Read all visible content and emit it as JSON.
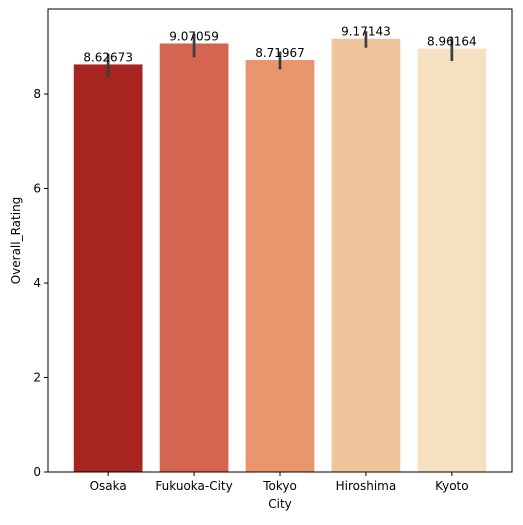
{
  "chart_data": {
    "type": "bar",
    "title": "",
    "xlabel": "City",
    "ylabel": "Overall_Rating",
    "categories": [
      "Osaka",
      "Fukuoka-City",
      "Tokyo",
      "Hiroshima",
      "Kyoto"
    ],
    "values": [
      8.62673,
      9.07059,
      8.71967,
      9.17143,
      8.96164
    ],
    "value_labels": [
      "8.62673",
      "9.07059",
      "8.71967",
      "9.17143",
      "8.96164"
    ],
    "error_bars": [
      {
        "low": 8.35,
        "high": 8.85
      },
      {
        "low": 8.78,
        "high": 9.28
      },
      {
        "low": 8.52,
        "high": 8.9
      },
      {
        "low": 8.98,
        "high": 9.33
      },
      {
        "low": 8.7,
        "high": 9.2
      }
    ],
    "bar_colors": [
      "#a82421",
      "#d36551",
      "#e9966e",
      "#f0c59b",
      "#f6e0c2"
    ],
    "error_bar_color": "#3d3d3d",
    "yticks": [
      0,
      2,
      4,
      6,
      8
    ],
    "ylim": [
      0,
      9.8
    ],
    "grid": false,
    "legend": "none"
  }
}
